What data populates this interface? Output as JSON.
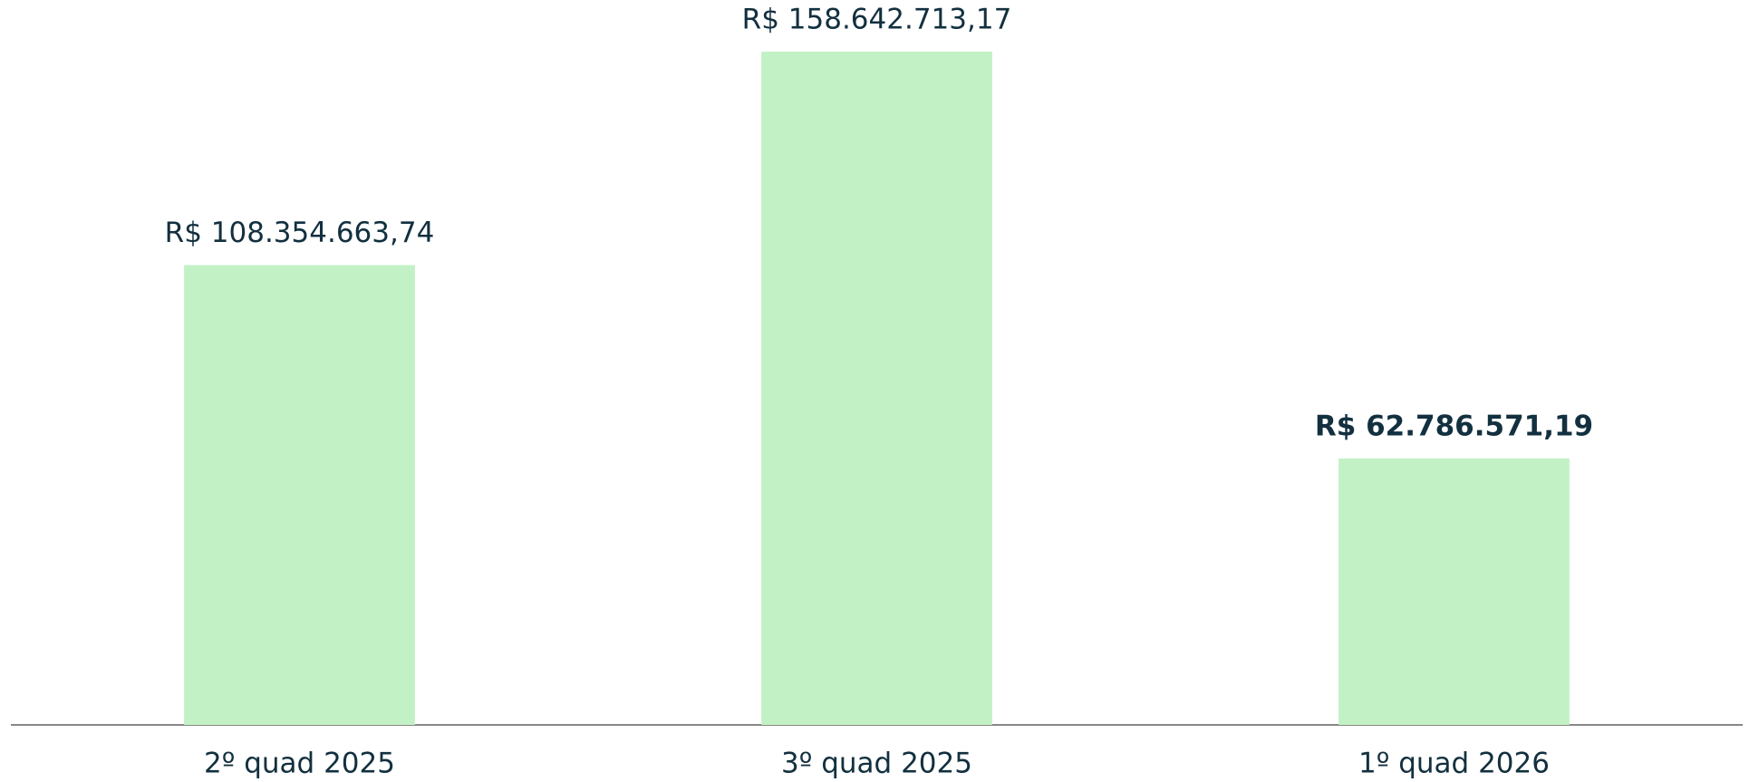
{
  "chart_data": {
    "type": "bar",
    "categories": [
      "2º quad 2025",
      "3º quad 2025",
      "1º quad 2026"
    ],
    "values": [
      108354663.74,
      158642713.17,
      62786571.19
    ],
    "value_labels": [
      "R$ 108.354.663,74",
      "R$ 158.642.713,17",
      "R$ 62.786.571,19"
    ],
    "color": "#c3f1c6",
    "highlight_index": 2
  }
}
